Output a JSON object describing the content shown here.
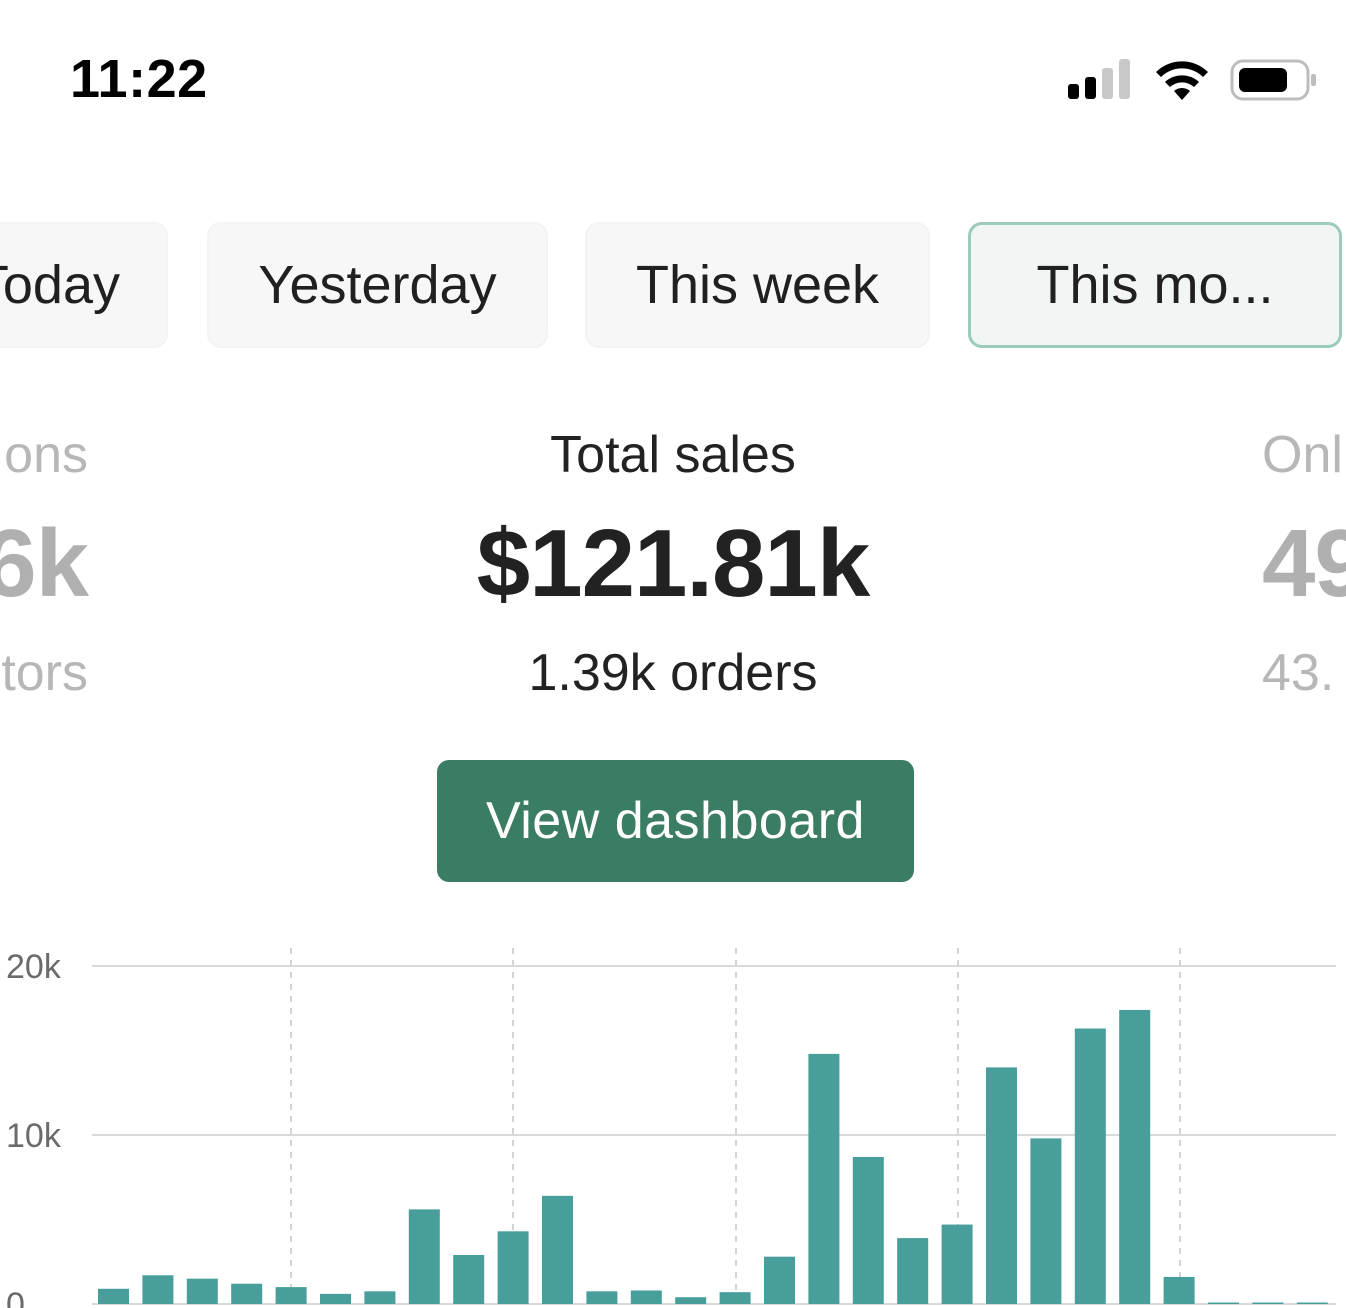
{
  "status_bar": {
    "time": "11:22",
    "icons": [
      "cellular-signal-icon",
      "wifi-icon",
      "battery-icon"
    ]
  },
  "period_tabs": {
    "selected": "This mo...",
    "items": [
      {
        "label": "Today"
      },
      {
        "label": "Yesterday"
      },
      {
        "label": "This week"
      },
      {
        "label": "This mo..."
      }
    ]
  },
  "metrics": {
    "left": {
      "label": "ons",
      "value": "6k",
      "sub": "tors"
    },
    "center": {
      "label": "Total sales",
      "value": "$121.81k",
      "sub": "1.39k orders"
    },
    "right": {
      "label": "Onl",
      "value": "49",
      "sub": "43."
    }
  },
  "actions": {
    "view_dashboard_label": "View dashboard"
  },
  "colors": {
    "accent": "#3a7d63",
    "bar": "#479e9b",
    "active_tab_border": "#9ccbb9"
  },
  "chart_data": {
    "type": "bar",
    "y_tick_labels": [
      "20k",
      "10k",
      "0"
    ],
    "ylim": [
      0,
      20000
    ],
    "grid": true,
    "values": [
      900,
      1700,
      1500,
      1200,
      1000,
      600,
      750,
      5600,
      2900,
      4300,
      6400,
      750,
      800,
      400,
      700,
      2800,
      14800,
      8700,
      3900,
      4700,
      14000,
      9800,
      16300,
      17400,
      1600,
      50,
      50,
      50
    ]
  }
}
